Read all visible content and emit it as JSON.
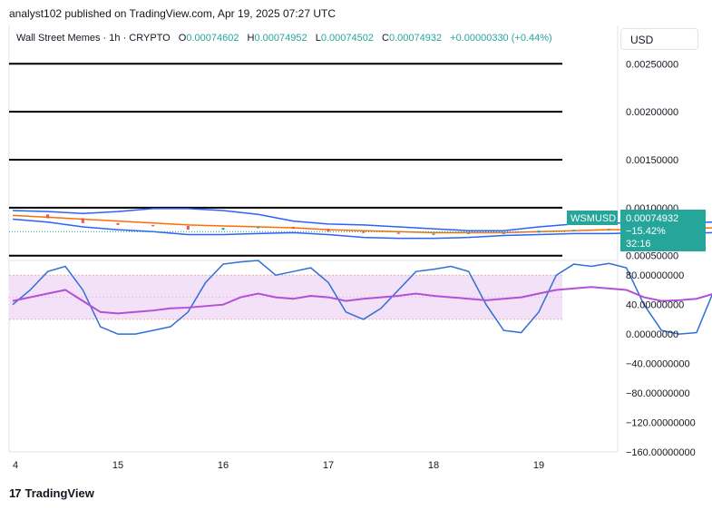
{
  "header": {
    "text": "analyst102 published on TradingView.com, Apr 19, 2025 07:27 UTC"
  },
  "legend": {
    "symbol": "Wall Street Memes · 1h · CRYPTO",
    "o_label": "O",
    "o_value": "0.00074602",
    "h_label": "H",
    "h_value": "0.00074952",
    "l_label": "L",
    "l_value": "0.00074502",
    "c_label": "C",
    "c_value": "0.00074932",
    "change": "+0.00000330 (+0.44%)"
  },
  "currency_button": "USD",
  "price_tag": {
    "ticker": "WSMUSD",
    "price": "0.00074932",
    "change": "−15.42%",
    "countdown": "32:16"
  },
  "footer": {
    "brand": "TradingView"
  },
  "colors": {
    "up": "#26a69a",
    "down": "#ef5350",
    "band": "#2962ff",
    "ma": "#ff6d00",
    "stoch": "#2f6fd6",
    "rsi": "#b34fd8",
    "zone": "#f3e1f7"
  },
  "chart_data": [
    {
      "type": "line",
      "name_display": "price",
      "x_ticks": [
        "4",
        "15",
        "16",
        "17",
        "18",
        "19"
      ],
      "y_ticks": [
        "0.00250000",
        "0.00200000",
        "0.00150000",
        "0.00100000",
        "0.00050000"
      ],
      "ylim": [
        0.00045,
        0.0029
      ],
      "horizontal_levels": [
        0.0025,
        0.002,
        0.0015,
        0.001,
        0.0005
      ],
      "x_hours": [
        0,
        8,
        16,
        24,
        32,
        40,
        48,
        56,
        64,
        72,
        80,
        88,
        96,
        104,
        112,
        120,
        128,
        136,
        144,
        152,
        160,
        168,
        176,
        184
      ],
      "upper_band": [
        0.00097,
        0.00096,
        0.00094,
        0.00096,
        0.00099,
        0.00099,
        0.00097,
        0.00093,
        0.00086,
        0.00083,
        0.00082,
        0.0008,
        0.00078,
        0.00076,
        0.00076,
        0.0008,
        0.00083,
        0.00084,
        0.00084,
        0.00084,
        0.00085,
        0.00085,
        0.00085,
        0.00086
      ],
      "lower_band": [
        0.00088,
        0.00085,
        0.0008,
        0.00077,
        0.00075,
        0.00072,
        0.00072,
        0.00073,
        0.00074,
        0.00072,
        0.00069,
        0.00068,
        0.00068,
        0.00069,
        0.00071,
        0.00072,
        0.00073,
        0.00073,
        0.00074,
        0.00073,
        0.00074,
        0.00074,
        0.00074,
        0.00073
      ],
      "moving_average": [
        0.00092,
        0.0009,
        0.00088,
        0.00086,
        0.00084,
        0.00082,
        0.00081,
        0.0008,
        0.00079,
        0.00077,
        0.00076,
        0.00075,
        0.00074,
        0.00074,
        0.00074,
        0.00075,
        0.00076,
        0.00077,
        0.00077,
        0.00078,
        0.00079,
        0.00079,
        0.00079,
        0.00079
      ],
      "close": [
        0.00093,
        0.00089,
        0.00084,
        0.00082,
        0.00081,
        0.00077,
        0.00079,
        0.0008,
        0.00078,
        0.00075,
        0.00074,
        0.00073,
        0.00073,
        0.00074,
        0.00074,
        0.00076,
        0.00077,
        0.00078,
        0.00078,
        0.00079,
        0.00079,
        0.00078,
        0.00076,
        0.000749
      ],
      "current_price": 0.00074932
    },
    {
      "type": "line",
      "name_display": "oscillator",
      "y_ticks": [
        "80.00000000",
        "40.00000000",
        "0.00000000",
        "−40.00000000",
        "−80.00000000",
        "−120.00000000",
        "−160.00000000"
      ],
      "ylim": [
        -160,
        100
      ],
      "overbought": 80,
      "oversold": 20,
      "x_hours": [
        0,
        4,
        8,
        12,
        16,
        20,
        24,
        28,
        32,
        36,
        40,
        44,
        48,
        52,
        56,
        60,
        64,
        68,
        72,
        76,
        80,
        84,
        88,
        92,
        96,
        100,
        104,
        108,
        112,
        116,
        120,
        124,
        128,
        132,
        136,
        140,
        144,
        148,
        152,
        156,
        160,
        164,
        168,
        172,
        176,
        180,
        184
      ],
      "stochastic": [
        40,
        60,
        85,
        92,
        60,
        10,
        0,
        0,
        5,
        10,
        30,
        70,
        95,
        98,
        100,
        80,
        85,
        90,
        70,
        30,
        20,
        35,
        60,
        85,
        88,
        92,
        85,
        40,
        5,
        2,
        30,
        80,
        95,
        92,
        96,
        90,
        40,
        5,
        0,
        2,
        60,
        82,
        78,
        72,
        62,
        5,
        8
      ],
      "rsi": [
        45,
        50,
        55,
        60,
        45,
        30,
        28,
        30,
        32,
        35,
        36,
        38,
        40,
        50,
        55,
        50,
        48,
        52,
        50,
        45,
        48,
        50,
        52,
        55,
        52,
        50,
        48,
        46,
        48,
        50,
        55,
        60,
        62,
        64,
        62,
        60,
        50,
        45,
        46,
        48,
        55,
        62,
        60,
        55,
        50,
        40,
        38
      ]
    }
  ]
}
